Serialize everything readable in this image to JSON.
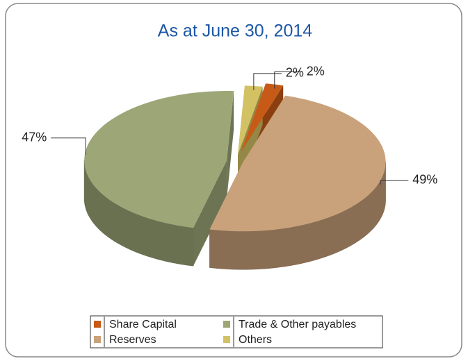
{
  "chart_data": {
    "type": "pie",
    "title": "As at June 30, 2014",
    "categories": [
      "Share Capital",
      "Reserves",
      "Trade & Other payables",
      "Others"
    ],
    "values": [
      2,
      49,
      47,
      2
    ],
    "value_labels": [
      "2%",
      "49%",
      "47%",
      "2%"
    ],
    "colors": [
      "#c65a16",
      "#c9a27b",
      "#9ca676",
      "#d3c264"
    ]
  }
}
